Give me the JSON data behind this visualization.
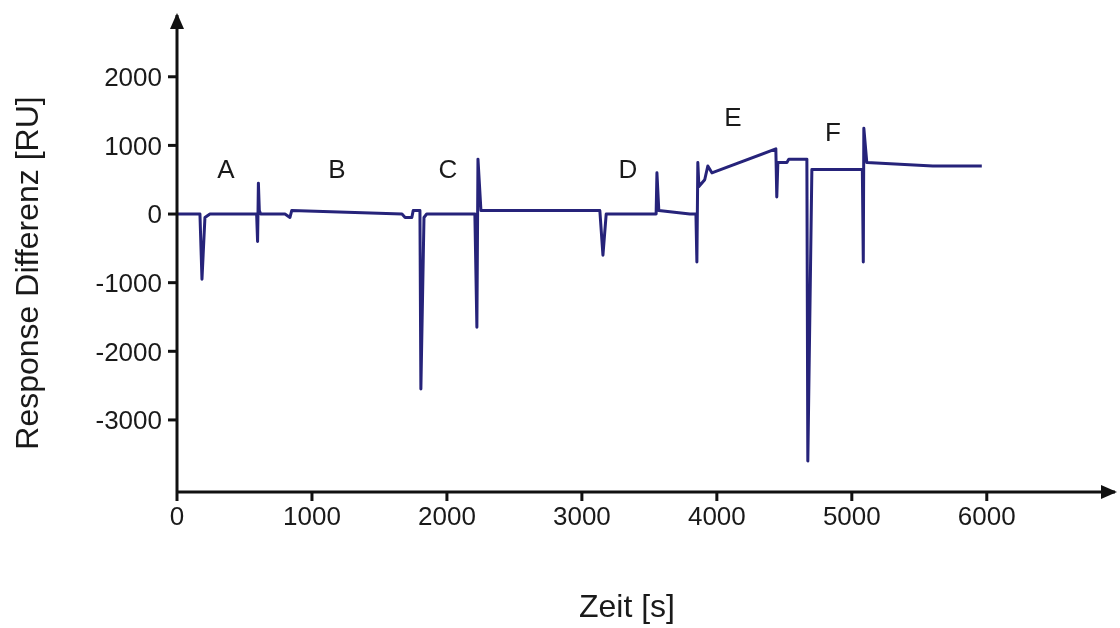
{
  "chart_data": {
    "type": "line",
    "xlabel": "Zeit [s]",
    "ylabel": "Response Differenz [RU]",
    "x": [
      0,
      170,
      185,
      207,
      244,
      590,
      597,
      600,
      603,
      610,
      620,
      800,
      837,
      850,
      1667,
      1690,
      1740,
      1750,
      1800,
      1807,
      1830,
      1850,
      2207,
      2222,
      2230,
      2252,
      3133,
      3156,
      3180,
      3207,
      3550,
      3556,
      3570,
      3800,
      3845,
      3852,
      3859,
      3867,
      3910,
      3933,
      3963,
      4437,
      4444,
      4452,
      4519,
      4533,
      4667,
      4674,
      4704,
      5070,
      5078,
      5085,
      5089,
      5111,
      5600,
      5963
    ],
    "series": [
      {
        "color": "#26237a",
        "values": [
          0,
          0,
          -950,
          -50,
          0,
          0,
          -400,
          0,
          450,
          50,
          0,
          0,
          -50,
          50,
          0,
          -50,
          -50,
          50,
          50,
          -2550,
          -50,
          0,
          0,
          -1650,
          800,
          50,
          50,
          -600,
          0,
          0,
          0,
          600,
          50,
          0,
          0,
          -700,
          750,
          400,
          500,
          700,
          600,
          950,
          250,
          750,
          750,
          800,
          800,
          -3600,
          650,
          650,
          650,
          -700,
          1250,
          750,
          700,
          700
        ]
      }
    ],
    "xlim": [
      0,
      6950
    ],
    "xticks": [
      0,
      1000,
      2000,
      3000,
      4000,
      5000,
      6000
    ],
    "ylim": [
      -4050,
      2900
    ],
    "yticks": [
      -3000,
      -2000,
      -1000,
      0,
      1000,
      2000
    ],
    "grid": false,
    "legend": false,
    "marker": "none",
    "line_style": "solid",
    "annotations": [
      "A",
      "B",
      "C",
      "D",
      "E",
      "F"
    ]
  }
}
